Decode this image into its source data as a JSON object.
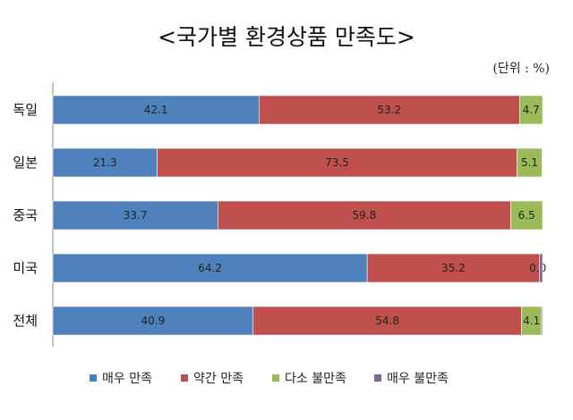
{
  "chart_data": {
    "type": "bar",
    "orientation": "horizontal",
    "stacked": true,
    "title": "<국가별 환경상품 만족도>",
    "unit_note": "(단위 : %)",
    "categories": [
      "독일",
      "일본",
      "중국",
      "미국",
      "전체"
    ],
    "series": [
      {
        "name": "매우 만족",
        "color": "#4f81bd",
        "values": [
          42.1,
          21.3,
          33.7,
          64.2,
          40.9
        ],
        "labels": [
          "42.1",
          "21.3",
          "33.7",
          "64.2",
          "40.9"
        ]
      },
      {
        "name": "약간 만족",
        "color": "#c0504d",
        "values": [
          53.2,
          73.5,
          59.8,
          35.2,
          54.8
        ],
        "labels": [
          "53.2",
          "73.5",
          "59.8",
          "35.2",
          "54.8"
        ]
      },
      {
        "name": "다소 불만족",
        "color": "#9bbb59",
        "values": [
          4.7,
          5.1,
          6.5,
          0.0,
          4.1
        ],
        "labels": [
          "4.7",
          "5.1",
          "6.5",
          "0.0",
          "4.1"
        ]
      },
      {
        "name": "매우 불만족",
        "color": "#8064a2",
        "values": [
          0.0,
          0.0,
          0.0,
          0.6,
          0.2
        ],
        "labels": [
          "",
          "",
          "",
          "",
          ""
        ]
      }
    ],
    "xlim": [
      0,
      100
    ],
    "grid": false,
    "legend": "bottom"
  }
}
